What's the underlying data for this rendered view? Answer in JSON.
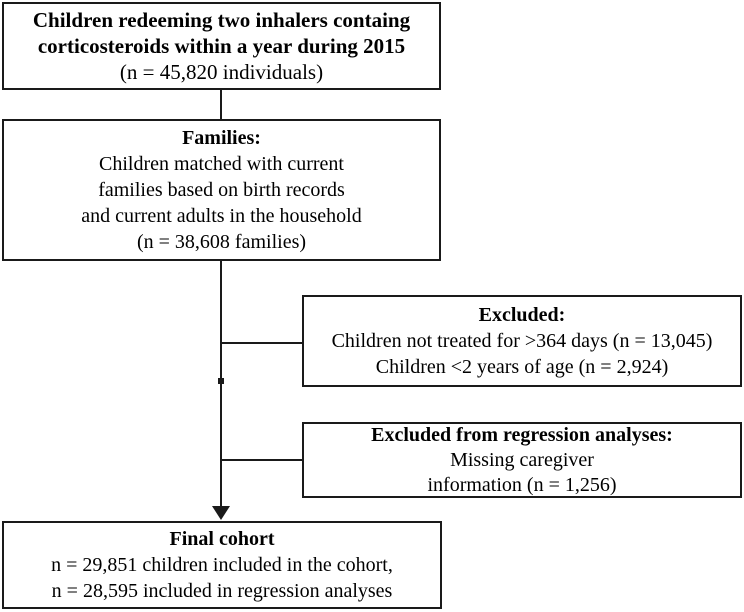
{
  "figure": {
    "type": "flowchart",
    "colors": {
      "background": "#ffffff",
      "border": "#1a1a1a",
      "text": "#000000"
    },
    "boxes": [
      {
        "id": "source-population",
        "lines": [
          {
            "text": "Children redeeming two inhalers containg",
            "bold": true
          },
          {
            "text": "corticosteroids within a year during 2015",
            "bold": true
          },
          {
            "text": "(n = 45,820 individuals)",
            "bold": false
          }
        ]
      },
      {
        "id": "families",
        "lines": [
          {
            "text": "Families:",
            "bold": true
          },
          {
            "text": "Children matched with current",
            "bold": false
          },
          {
            "text": "families based on birth records",
            "bold": false
          },
          {
            "text": "and current adults in the household",
            "bold": false
          },
          {
            "text": "(n = 38,608 families)",
            "bold": false
          }
        ]
      },
      {
        "id": "excluded",
        "lines": [
          {
            "text": "Excluded:",
            "bold": true
          },
          {
            "text": "Children not treated for >364 days (n = 13,045)",
            "bold": false
          },
          {
            "text": "Children <2 years of age (n = 2,924)",
            "bold": false
          }
        ]
      },
      {
        "id": "excluded-regression",
        "lines": [
          {
            "text": "Excluded from regression analyses:",
            "bold": true
          },
          {
            "text": "Missing caregiver",
            "bold": false
          },
          {
            "text": "information (n = 1,256)",
            "bold": false
          }
        ]
      },
      {
        "id": "final-cohort",
        "lines": [
          {
            "text": "Final cohort",
            "bold": true
          },
          {
            "text": "n = 29,851 children included in the cohort,",
            "bold": false
          },
          {
            "text": "n = 28,595 included in regression analyses",
            "bold": false
          }
        ]
      }
    ]
  }
}
